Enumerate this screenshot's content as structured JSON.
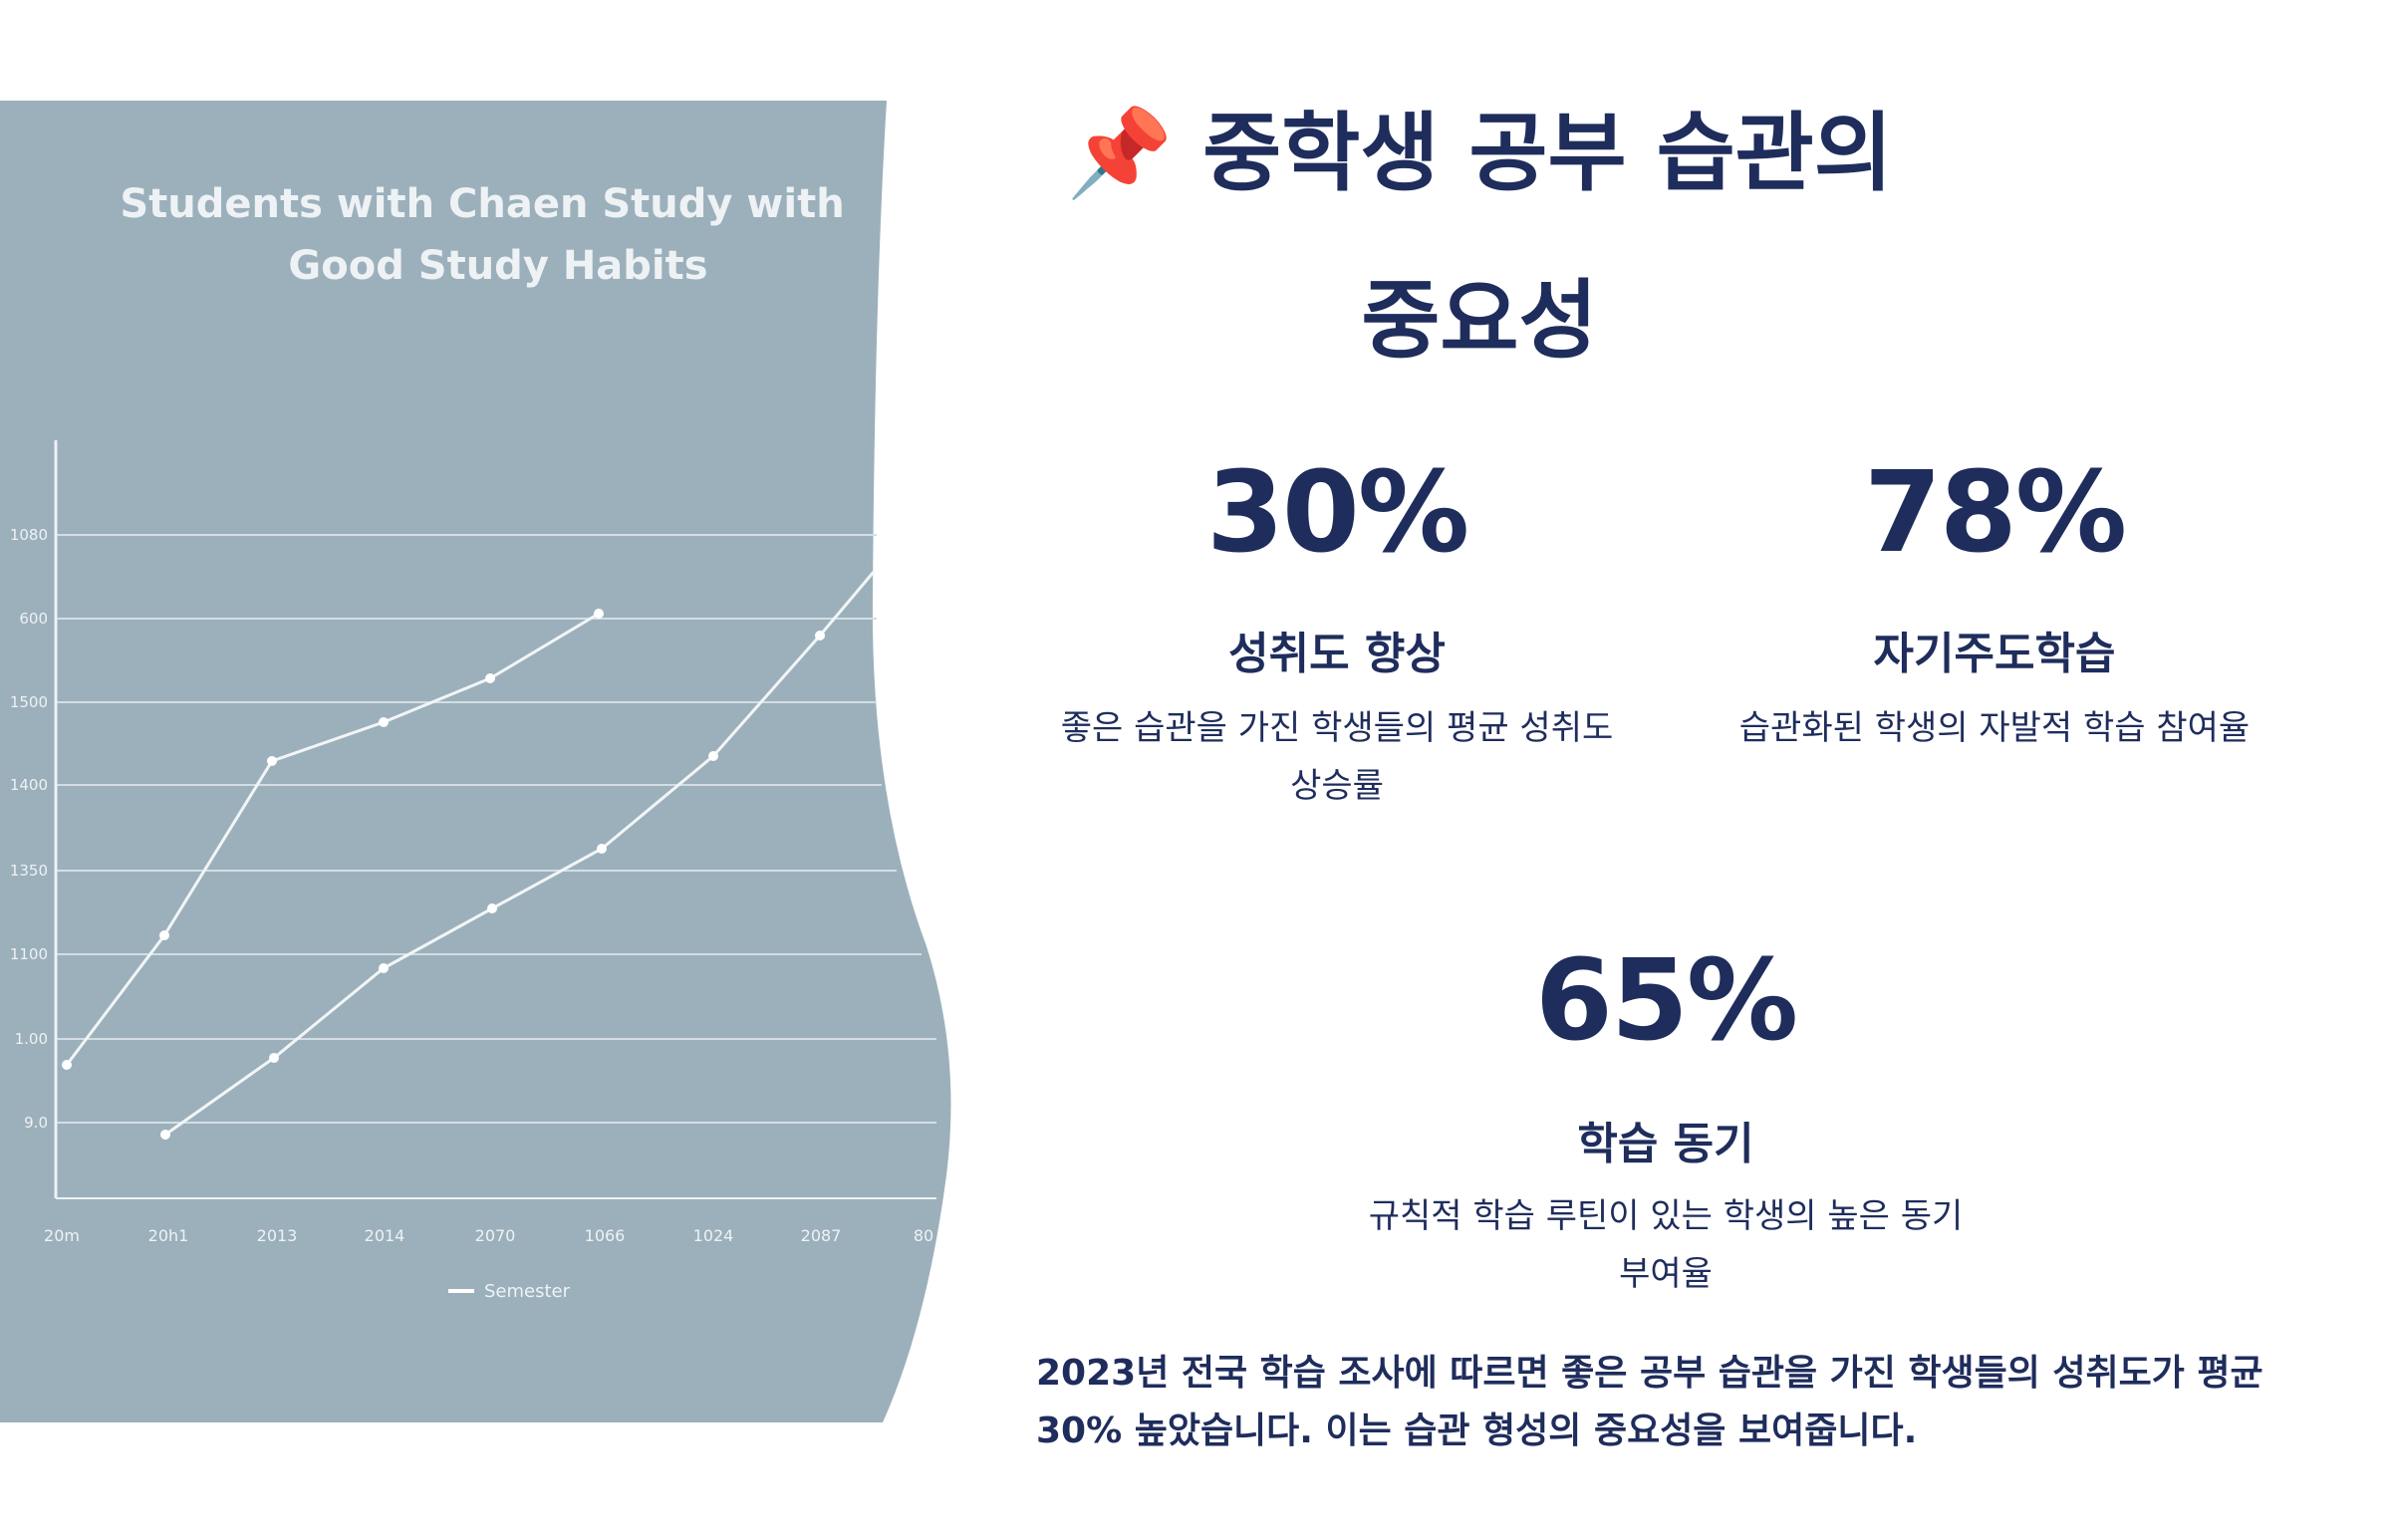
{
  "illustration": {
    "title_lines": [
      "Students with Chaen Study with",
      "Good Study Habits"
    ],
    "y_labels": [
      "1080",
      "600",
      "1500",
      "1400",
      "1350",
      "1100",
      "1.00",
      "9.0"
    ],
    "x_labels": [
      "20m",
      "20h1",
      "2013",
      "2014",
      "2070",
      "1066",
      "1024",
      "2087",
      "80"
    ],
    "legend": "Semester"
  },
  "header": {
    "title": "📌 중학생 공부 습관의 중요성"
  },
  "stats": [
    {
      "value": "30%",
      "label": "성취도 향상",
      "description": "좋은 습관을 가진 학생들의 평균 성취도 상승률"
    },
    {
      "value": "78%",
      "label": "자기주도학습",
      "description": "습관화된 학생의 자발적 학습 참여율"
    },
    {
      "value": "65%",
      "label": "학습 동기",
      "description": "규칙적 학습 루틴이 있는 학생의 높은 동기 부여율"
    }
  ],
  "footer": {
    "text": "2023년 전국 학습 조사에 따르면 좋은 공부 습관을 가진 학생들의 성취도가 평균 30% 높았습니다. 이는 습관 형성의 중요성을 보여줍니다."
  }
}
